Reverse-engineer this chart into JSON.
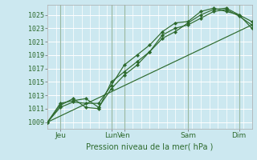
{
  "background_color": "#cce8f0",
  "grid_color": "#ffffff",
  "line_color": "#2d6a2d",
  "marker_color": "#2d6a2d",
  "text_color": "#2d6a2d",
  "xlabel": "Pression niveau de la mer( hPa )",
  "yticks": [
    1009,
    1011,
    1013,
    1015,
    1017,
    1019,
    1021,
    1023,
    1025
  ],
  "ylim": [
    1008.0,
    1026.5
  ],
  "xlim": [
    0,
    96
  ],
  "xtick_positions": [
    6,
    30,
    36,
    66,
    90
  ],
  "xtick_labels": [
    "Jeu",
    "Lun",
    "Ven",
    "Sam",
    "Dim"
  ],
  "vline_positions": [
    6,
    30,
    36,
    66,
    90
  ],
  "series": [
    {
      "x": [
        0,
        6,
        12,
        18,
        24,
        30,
        36,
        42,
        48,
        54,
        60,
        66,
        72,
        78,
        84,
        90,
        96
      ],
      "y": [
        1009.0,
        1011.2,
        1012.0,
        1011.8,
        1011.8,
        1014.5,
        1017.5,
        1019.0,
        1020.5,
        1022.5,
        1023.8,
        1024.0,
        1025.5,
        1026.0,
        1025.5,
        1025.0,
        1024.0
      ]
    },
    {
      "x": [
        0,
        6,
        12,
        18,
        24,
        30,
        36,
        42,
        48,
        54,
        60,
        66,
        72,
        78,
        84,
        90,
        96
      ],
      "y": [
        1009.0,
        1011.5,
        1012.5,
        1011.2,
        1011.0,
        1015.0,
        1016.5,
        1018.0,
        1019.5,
        1022.0,
        1023.0,
        1023.5,
        1024.5,
        1025.5,
        1025.8,
        1024.8,
        1023.5
      ]
    },
    {
      "x": [
        0,
        6,
        12,
        18,
        24,
        30,
        36,
        42,
        48,
        54,
        60,
        66,
        72,
        78,
        84,
        90,
        96
      ],
      "y": [
        1009.0,
        1011.8,
        1012.2,
        1012.5,
        1011.2,
        1014.0,
        1016.0,
        1017.5,
        1019.5,
        1021.5,
        1022.5,
        1023.8,
        1025.0,
        1025.8,
        1026.0,
        1025.0,
        1023.0
      ]
    },
    {
      "x": [
        0,
        96
      ],
      "y": [
        1009.0,
        1023.5
      ]
    }
  ]
}
